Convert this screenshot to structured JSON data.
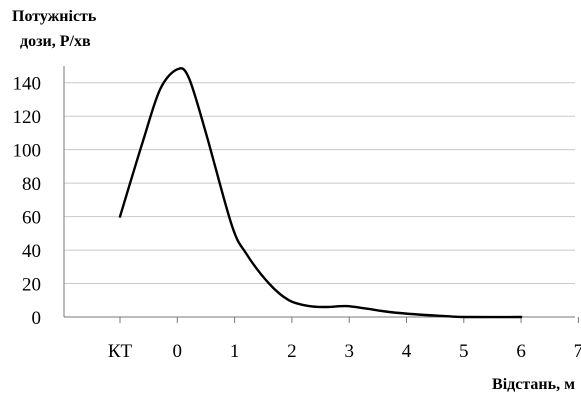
{
  "chart_data": {
    "type": "line",
    "ylabel": [
      "Потужність",
      "дози, Р/хв"
    ],
    "xlabel": "Відстань, м",
    "categories": [
      "КТ",
      "0",
      "1",
      "2",
      "3",
      "4",
      "5",
      "6",
      "7"
    ],
    "yticks": [
      "0",
      "20",
      "40",
      "60",
      "80",
      "100",
      "120",
      "140"
    ],
    "ylim": [
      0,
      150
    ],
    "grid": true,
    "smooth": true,
    "series": [
      {
        "x": [
          "КТ",
          "-0.6",
          "-0.3",
          "0",
          "0.2",
          "0.5",
          "0.95",
          "1.2",
          "1.6",
          "1.95",
          "2.3",
          "2.6",
          "2.95",
          "3.3",
          "3.7",
          "4.2",
          "4.7",
          "5",
          "6"
        ],
        "values": [
          60,
          105,
          136,
          148,
          143,
          110,
          55,
          38,
          20,
          10,
          6.5,
          6,
          6.5,
          5,
          3,
          1.5,
          0.5,
          0,
          0
        ],
        "color": "#000000"
      }
    ]
  }
}
